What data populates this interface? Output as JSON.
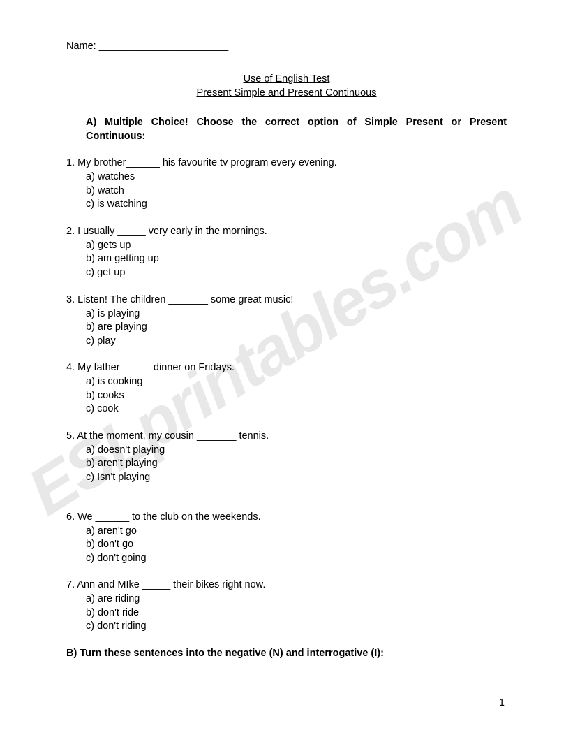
{
  "name_label": "Name: _______________________",
  "title_line1": "Use of English Test",
  "title_line2": "Present Simple and Present Continuous",
  "section_a_line1": "A) Multiple Choice! Choose the correct option of Simple Present or Present",
  "section_a_line2": "Continuous:",
  "questions": [
    {
      "q": "1. My brother______ his favourite tv program every evening.",
      "opts": [
        "a)  watches",
        "b)  watch",
        "c)  is watching"
      ]
    },
    {
      "q": "2. I usually _____ very early in the mornings.",
      "opts": [
        "a)  gets up",
        "b)  am getting up",
        "c)  get up"
      ]
    },
    {
      "q": "3. Listen! The children _______ some great music!",
      "opts": [
        "a)  is playing",
        "b)  are playing",
        "c)  play"
      ]
    },
    {
      "q": "4. My father _____ dinner on Fridays.",
      "opts": [
        "a)  is cooking",
        "b)  cooks",
        "c)  cook"
      ]
    },
    {
      "q": "5. At the moment, my cousin _______ tennis.",
      "opts": [
        "a)  doesn't playing",
        "b)  aren't playing",
        "c)  Isn't playing"
      ],
      "extra_gap": true
    },
    {
      "q": "6. We ______ to the club on the weekends.",
      "opts": [
        "a)  aren't go",
        "b)  don't go",
        "c)  don't going"
      ]
    },
    {
      "q": "7. Ann and MIke _____ their bikes right now.",
      "opts": [
        "a)  are riding",
        "b)  don't ride",
        "c)  don't riding"
      ]
    }
  ],
  "section_b": "B) Turn these sentences into the negative (N)  and interrogative (I):",
  "page_number": "1",
  "watermark": "ESLprintables.com",
  "colors": {
    "text": "#000000",
    "background": "#ffffff",
    "watermark": "rgba(0,0,0,0.09)"
  }
}
